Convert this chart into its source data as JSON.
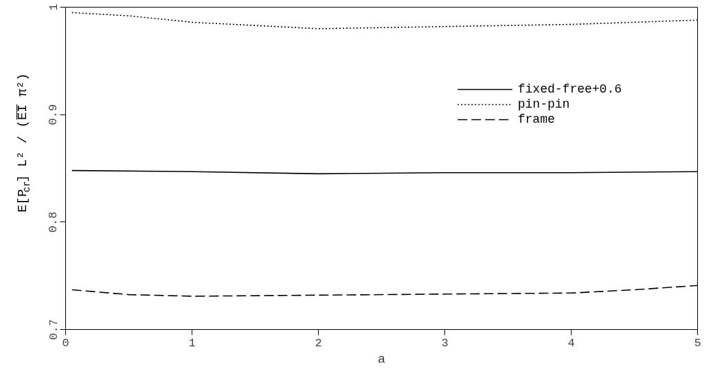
{
  "chart_data": {
    "type": "line",
    "xlabel": "a",
    "ylabel": "E[P$_{cr}$] L² / (E̅I̅ π²)",
    "xlim": [
      0,
      5
    ],
    "ylim": [
      0.7,
      1
    ],
    "xticks": [
      0,
      1,
      2,
      3,
      4,
      5
    ],
    "yticks": [
      0.7,
      0.8,
      0.9,
      1
    ],
    "grid": false,
    "legend": "top right",
    "series": [
      {
        "name": "fixed-free+0.6",
        "color": "#000000",
        "line_style": "solid",
        "x": [
          0.05,
          1,
          2,
          3,
          4,
          5
        ],
        "values": [
          0.848,
          0.847,
          0.845,
          0.846,
          0.846,
          0.847
        ]
      },
      {
        "name": "pin-pin",
        "color": "#000000",
        "line_style": "dotted",
        "x": [
          0.05,
          0.5,
          1,
          2,
          3,
          4,
          5
        ],
        "values": [
          0.995,
          0.992,
          0.986,
          0.98,
          0.982,
          0.984,
          0.988
        ]
      },
      {
        "name": "frame",
        "color": "#000000",
        "line_style": "dashed",
        "x": [
          0.05,
          0.5,
          1,
          2,
          3,
          4,
          4.5,
          5
        ],
        "values": [
          0.737,
          0.7325,
          0.731,
          0.732,
          0.733,
          0.734,
          0.737,
          0.741
        ]
      }
    ]
  }
}
